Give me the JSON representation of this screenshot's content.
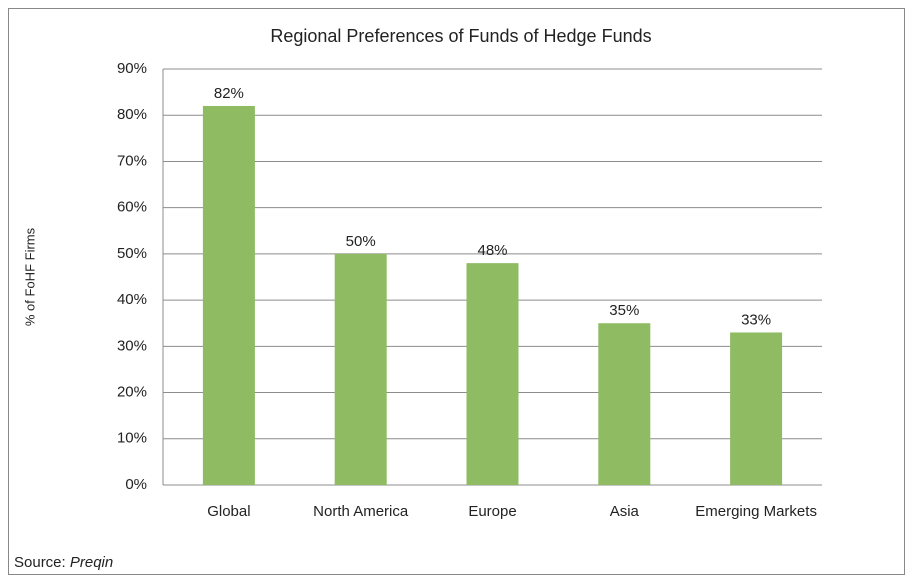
{
  "chart_data": {
    "type": "bar",
    "title": "Regional Preferences of Funds of Hedge Funds",
    "y_axis_label": "% of FoHF Firms",
    "categories": [
      "Global",
      "North America",
      "Europe",
      "Asia",
      "Emerging Markets"
    ],
    "values": [
      82,
      50,
      48,
      35,
      33
    ],
    "value_labels": [
      "82%",
      "50%",
      "48%",
      "35%",
      "33%"
    ],
    "color": "#8fbc63",
    "ylim": [
      0,
      90
    ],
    "yticks": [
      {
        "value": 0,
        "label": "0%"
      },
      {
        "value": 10,
        "label": "10%"
      },
      {
        "value": 20,
        "label": "20%"
      },
      {
        "value": 30,
        "label": "30%"
      },
      {
        "value": 40,
        "label": "40%"
      },
      {
        "value": 50,
        "label": "50%"
      },
      {
        "value": 60,
        "label": "60%"
      },
      {
        "value": 70,
        "label": "70%"
      },
      {
        "value": 80,
        "label": "80%"
      },
      {
        "value": 90,
        "label": "90%"
      }
    ],
    "grid": true,
    "source_label": "Source:",
    "source": "Preqin"
  }
}
